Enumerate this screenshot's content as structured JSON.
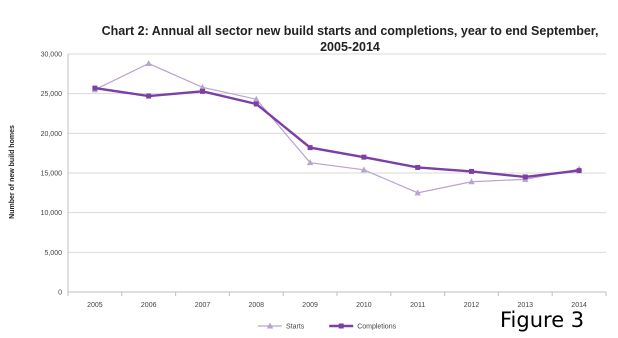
{
  "caption": "Figure 3",
  "chart_data": {
    "type": "line",
    "title_lines": [
      "Chart 2: Annual all sector new build starts and completions, year to end September,",
      "2005-2014"
    ],
    "xlabel": "",
    "ylabel": "Number of new build homes",
    "categories": [
      "2005",
      "2006",
      "2007",
      "2008",
      "2009",
      "2010",
      "2011",
      "2012",
      "2013",
      "2014"
    ],
    "ylim": [
      0,
      30000
    ],
    "yticks": [
      0,
      5000,
      10000,
      15000,
      20000,
      25000,
      30000
    ],
    "ytick_labels": [
      "0",
      "5,000",
      "10,000",
      "15,000",
      "20,000",
      "25,000",
      "30,000"
    ],
    "grid": true,
    "legend_position": "bottom",
    "series": [
      {
        "name": "Starts",
        "color": "#b9a3cf",
        "marker": "triangle",
        "values": [
          25500,
          28800,
          25800,
          24300,
          16300,
          15400,
          12500,
          13900,
          14200,
          15500
        ]
      },
      {
        "name": "Completions",
        "color": "#7b3fa6",
        "marker": "square",
        "values": [
          25700,
          24700,
          25300,
          23700,
          18200,
          17000,
          15700,
          15200,
          14500,
          15300
        ]
      }
    ]
  }
}
